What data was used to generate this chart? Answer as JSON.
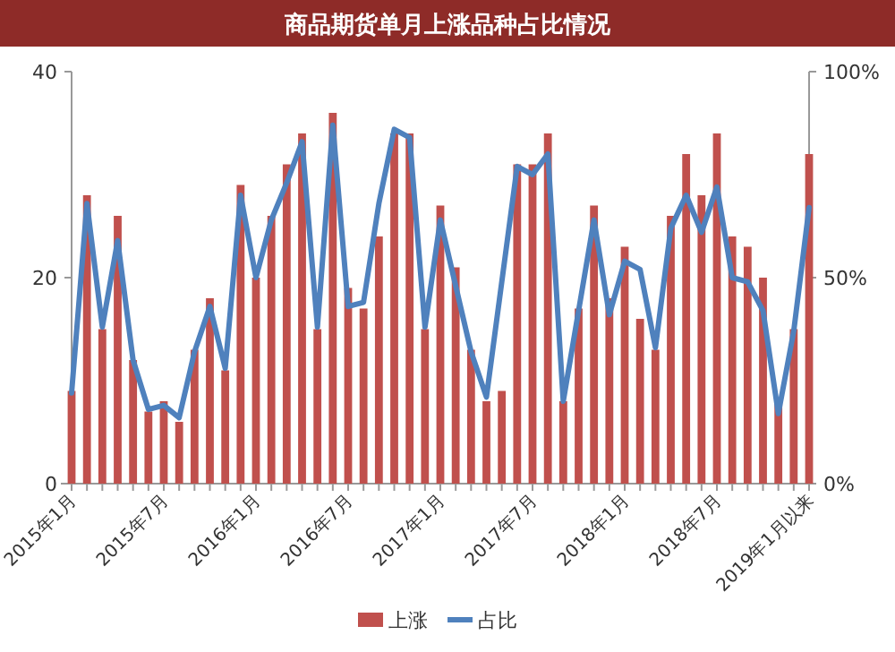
{
  "chart_data": {
    "type": "bar",
    "title": "商品期货单月上涨品种占比情况",
    "categories": [
      "2015年1月",
      null,
      null,
      null,
      null,
      null,
      "2015年7月",
      null,
      null,
      null,
      null,
      null,
      "2016年1月",
      null,
      null,
      null,
      null,
      null,
      "2016年7月",
      null,
      null,
      null,
      null,
      null,
      "2017年1月",
      null,
      null,
      null,
      null,
      null,
      "2017年7月",
      null,
      null,
      null,
      null,
      null,
      "2018年1月",
      null,
      null,
      null,
      null,
      null,
      "2018年7月",
      null,
      null,
      null,
      null,
      null,
      "2019年1月以来"
    ],
    "series": [
      {
        "name": "上涨",
        "color": "#c0504d",
        "values": [
          9,
          28,
          15,
          26,
          12,
          7,
          8,
          6,
          13,
          18,
          11,
          29,
          20,
          26,
          31,
          34,
          15,
          36,
          19,
          17,
          24,
          34,
          34,
          15,
          27,
          21,
          13,
          8,
          9,
          31,
          31,
          34,
          8,
          17,
          27,
          18,
          23,
          16,
          13,
          26,
          32,
          28,
          34,
          24,
          23,
          20,
          8,
          15,
          32
        ]
      },
      {
        "name": "占比",
        "type": "line",
        "axis": "y2",
        "color": "#4f81bd",
        "values": [
          22,
          68,
          38,
          59,
          30,
          18,
          19,
          16,
          32,
          43,
          28,
          70,
          50,
          64,
          73,
          83,
          38,
          87,
          43,
          44,
          68,
          86,
          84,
          38,
          64,
          48,
          32,
          21,
          49,
          77,
          75,
          80,
          20,
          42,
          64,
          41,
          54,
          52,
          33,
          62,
          70,
          61,
          72,
          50,
          49,
          42,
          17,
          37,
          67
        ]
      }
    ],
    "ylim": [
      0,
      40
    ],
    "yticks": [
      0,
      20,
      40
    ],
    "y2lim": [
      0,
      100
    ],
    "y2ticks": [
      {
        "value": 0,
        "label": "0%"
      },
      {
        "value": 50,
        "label": "50%"
      },
      {
        "value": 100,
        "label": "100%"
      }
    ],
    "grid": false,
    "legend": "bottom"
  }
}
